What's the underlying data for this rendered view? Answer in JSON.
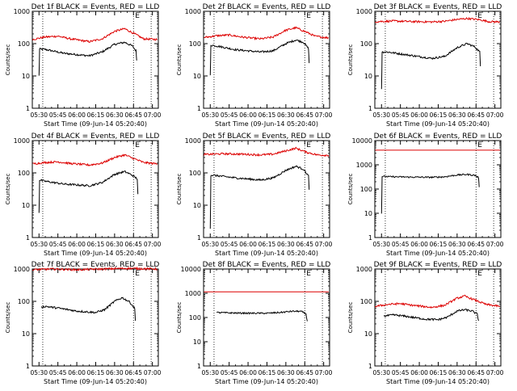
{
  "figure": {
    "background": "#ffffff",
    "axis_color": "#000000"
  },
  "chart_data": [
    {
      "type": "line",
      "title": "Det 1f BLACK = Events, RED = LLD",
      "xlabel": "Start Time (09-Jun-14 05:20:40)",
      "ylabel": "Counts/sec",
      "yscale": "log",
      "ylim": [
        1,
        1000
      ],
      "yticks": [
        1,
        10,
        100,
        1000
      ],
      "xticks": [
        "05:30",
        "05:45",
        "06:00",
        "06:15",
        "06:30",
        "06:45",
        "07:00"
      ],
      "xlim_min": [
        4.7,
        104.7
      ],
      "vlines_min": [
        13,
        85,
        99
      ],
      "corner_label": "E",
      "series": [
        {
          "name": "BLACK = Events",
          "color": "#000000",
          "points": [
            [
              10,
              10
            ],
            [
              10.5,
              68
            ],
            [
              15,
              66
            ],
            [
              30,
              50
            ],
            [
              50,
              42
            ],
            [
              60,
              55
            ],
            [
              70,
              95
            ],
            [
              78,
              110
            ],
            [
              84,
              85
            ],
            [
              87,
              60
            ],
            [
              87.5,
              30
            ]
          ]
        },
        {
          "name": "RED = LLD",
          "color": "#dd0000",
          "points": [
            [
              5,
              135
            ],
            [
              15,
              160
            ],
            [
              25,
              170
            ],
            [
              35,
              140
            ],
            [
              50,
              115
            ],
            [
              60,
              140
            ],
            [
              70,
              240
            ],
            [
              78,
              290
            ],
            [
              86,
              200
            ],
            [
              93,
              140
            ],
            [
              104,
              135
            ]
          ]
        }
      ]
    },
    {
      "type": "line",
      "title": "Det 2f BLACK = Events, RED = LLD",
      "xlabel": "Start Time (09-Jun-14 05:20:40)",
      "ylabel": "Counts/sec",
      "yscale": "log",
      "ylim": [
        1,
        1000
      ],
      "yticks": [
        1,
        10,
        100,
        1000
      ],
      "xticks": [
        "05:30",
        "05:45",
        "06:00",
        "06:15",
        "06:30",
        "06:45",
        "07:00"
      ],
      "xlim_min": [
        4.7,
        104.7
      ],
      "vlines_min": [
        13,
        85,
        99
      ],
      "corner_label": "E",
      "series": [
        {
          "name": "BLACK = Events",
          "color": "#000000",
          "points": [
            [
              10,
              10
            ],
            [
              10.5,
              90
            ],
            [
              15,
              85
            ],
            [
              30,
              65
            ],
            [
              50,
              55
            ],
            [
              60,
              60
            ],
            [
              70,
              100
            ],
            [
              78,
              130
            ],
            [
              84,
              110
            ],
            [
              88,
              70
            ],
            [
              88.5,
              25
            ]
          ]
        },
        {
          "name": "RED = LLD",
          "color": "#dd0000",
          "points": [
            [
              5,
              155
            ],
            [
              15,
              175
            ],
            [
              25,
              185
            ],
            [
              35,
              160
            ],
            [
              50,
              140
            ],
            [
              60,
              160
            ],
            [
              70,
              260
            ],
            [
              78,
              310
            ],
            [
              86,
              230
            ],
            [
              93,
              170
            ],
            [
              104,
              150
            ]
          ]
        }
      ]
    },
    {
      "type": "line",
      "title": "Det 3f BLACK = Events, RED = LLD",
      "xlabel": "Start Time (09-Jun-14 05:20:40)",
      "ylabel": "Counts/sec",
      "yscale": "log",
      "ylim": [
        1,
        1000
      ],
      "yticks": [
        1,
        10,
        100,
        1000
      ],
      "xticks": [
        "05:30",
        "05:45",
        "06:00",
        "06:15",
        "06:30",
        "06:45",
        "07:00"
      ],
      "xlim_min": [
        4.7,
        104.7
      ],
      "vlines_min": [
        13,
        85,
        99
      ],
      "corner_label": "E",
      "series": [
        {
          "name": "BLACK = Events",
          "color": "#000000",
          "points": [
            [
              10,
              4
            ],
            [
              10.5,
              55
            ],
            [
              15,
              55
            ],
            [
              30,
              45
            ],
            [
              50,
              35
            ],
            [
              60,
              40
            ],
            [
              70,
              75
            ],
            [
              78,
              100
            ],
            [
              84,
              80
            ],
            [
              88,
              55
            ],
            [
              88.5,
              20
            ]
          ]
        },
        {
          "name": "RED = LLD",
          "color": "#dd0000",
          "points": [
            [
              5,
              480
            ],
            [
              20,
              500
            ],
            [
              35,
              480
            ],
            [
              50,
              470
            ],
            [
              60,
              490
            ],
            [
              70,
              560
            ],
            [
              78,
              600
            ],
            [
              88,
              550
            ],
            [
              95,
              480
            ],
            [
              104,
              470
            ]
          ]
        }
      ]
    },
    {
      "type": "line",
      "title": "Det 4f BLACK = Events, RED = LLD",
      "xlabel": "Start Time (09-Jun-14 05:20:40)",
      "ylabel": "Counts/sec",
      "yscale": "log",
      "ylim": [
        1,
        1000
      ],
      "yticks": [
        1,
        10,
        100,
        1000
      ],
      "xticks": [
        "05:30",
        "05:45",
        "06:00",
        "06:15",
        "06:30",
        "06:45",
        "07:00"
      ],
      "xlim_min": [
        4.7,
        104.7
      ],
      "vlines_min": [
        13,
        85,
        99
      ],
      "corner_label": "E",
      "series": [
        {
          "name": "BLACK = Events",
          "color": "#000000",
          "points": [
            [
              10,
              6
            ],
            [
              10.5,
              60
            ],
            [
              15,
              55
            ],
            [
              30,
              45
            ],
            [
              50,
              40
            ],
            [
              60,
              50
            ],
            [
              70,
              90
            ],
            [
              78,
              110
            ],
            [
              84,
              85
            ],
            [
              88,
              65
            ],
            [
              88.5,
              22
            ]
          ]
        },
        {
          "name": "RED = LLD",
          "color": "#dd0000",
          "points": [
            [
              5,
              190
            ],
            [
              15,
              210
            ],
            [
              25,
              220
            ],
            [
              35,
              195
            ],
            [
              50,
              175
            ],
            [
              60,
              200
            ],
            [
              70,
              300
            ],
            [
              78,
              360
            ],
            [
              86,
              270
            ],
            [
              93,
              210
            ],
            [
              104,
              190
            ]
          ]
        }
      ]
    },
    {
      "type": "line",
      "title": "Det 5f BLACK = Events, RED = LLD",
      "xlabel": "Start Time (09-Jun-14 05:20:40)",
      "ylabel": "Counts/sec",
      "yscale": "log",
      "ylim": [
        1,
        1000
      ],
      "yticks": [
        1,
        10,
        100,
        1000
      ],
      "xticks": [
        "05:30",
        "05:45",
        "06:00",
        "06:15",
        "06:30",
        "06:45",
        "07:00"
      ],
      "xlim_min": [
        4.7,
        104.7
      ],
      "vlines_min": [
        13,
        85,
        99
      ],
      "corner_label": "E",
      "series": [
        {
          "name": "BLACK = Events",
          "color": "#000000",
          "points": [
            [
              10,
              2
            ],
            [
              10.5,
              85
            ],
            [
              15,
              82
            ],
            [
              30,
              70
            ],
            [
              50,
              60
            ],
            [
              60,
              70
            ],
            [
              70,
              120
            ],
            [
              78,
              160
            ],
            [
              84,
              130
            ],
            [
              88,
              80
            ],
            [
              88.5,
              30
            ]
          ]
        },
        {
          "name": "RED = LLD",
          "color": "#dd0000",
          "points": [
            [
              5,
              370
            ],
            [
              20,
              390
            ],
            [
              35,
              380
            ],
            [
              50,
              360
            ],
            [
              60,
              380
            ],
            [
              70,
              480
            ],
            [
              78,
              580
            ],
            [
              86,
              440
            ],
            [
              95,
              360
            ],
            [
              104,
              350
            ]
          ]
        }
      ]
    },
    {
      "type": "line",
      "title": "Det 6f BLACK = Events, RED = LLD",
      "xlabel": "Start Time (09-Jun-14 05:20:40)",
      "ylabel": "Counts/sec",
      "yscale": "log",
      "ylim": [
        1,
        10000
      ],
      "yticks": [
        1,
        10,
        100,
        1000,
        10000
      ],
      "xticks": [
        "05:30",
        "05:45",
        "06:00",
        "06:15",
        "06:30",
        "06:45",
        "07:00"
      ],
      "xlim_min": [
        4.7,
        104.7
      ],
      "vlines_min": [
        13,
        85,
        99
      ],
      "corner_label": "E",
      "series": [
        {
          "name": "BLACK = Events",
          "color": "#000000",
          "points": [
            [
              10,
              10
            ],
            [
              10.5,
              330
            ],
            [
              20,
              320
            ],
            [
              35,
              310
            ],
            [
              50,
              305
            ],
            [
              60,
              320
            ],
            [
              70,
              380
            ],
            [
              78,
              400
            ],
            [
              84,
              370
            ],
            [
              87,
              300
            ],
            [
              87.5,
              120
            ]
          ]
        },
        {
          "name": "RED = LLD",
          "color": "#dd0000",
          "points": [
            [
              5,
              4000
            ],
            [
              104,
              4000
            ]
          ]
        }
      ]
    },
    {
      "type": "line",
      "title": "Det 7f BLACK = Events, RED = LLD",
      "xlabel": "Start Time (09-Jun-14 05:20:40)",
      "ylabel": "Counts/sec",
      "yscale": "log",
      "ylim": [
        1,
        1000
      ],
      "yticks": [
        1,
        10,
        100,
        1000
      ],
      "xticks": [
        "05:30",
        "05:45",
        "06:00",
        "06:15",
        "06:30",
        "06:45",
        "07:00"
      ],
      "xlim_min": [
        4.7,
        104.7
      ],
      "vlines_min": [
        13,
        85,
        99
      ],
      "corner_label": "E",
      "series": [
        {
          "name": "BLACK = Events",
          "color": "#000000",
          "points": [
            [
              12,
              65
            ],
            [
              15,
              70
            ],
            [
              25,
              62
            ],
            [
              40,
              50
            ],
            [
              55,
              45
            ],
            [
              62,
              55
            ],
            [
              70,
              100
            ],
            [
              76,
              130
            ],
            [
              82,
              95
            ],
            [
              86,
              60
            ],
            [
              86.5,
              25
            ]
          ]
        },
        {
          "name": "RED = LLD",
          "color": "#dd0000",
          "points": [
            [
              5,
              950
            ],
            [
              20,
              1000
            ],
            [
              40,
              950
            ],
            [
              60,
              1000
            ],
            [
              80,
              1050
            ],
            [
              104,
              1000
            ]
          ]
        }
      ]
    },
    {
      "type": "line",
      "title": "Det 8f BLACK = Events, RED = LLD",
      "xlabel": "Start Time (09-Jun-14 05:20:40)",
      "ylabel": "Counts/sec",
      "yscale": "log",
      "ylim": [
        1,
        10000
      ],
      "yticks": [
        1,
        10,
        100,
        1000,
        10000
      ],
      "xticks": [
        "05:30",
        "05:45",
        "06:00",
        "06:15",
        "06:30",
        "06:45",
        "07:00"
      ],
      "xlim_min": [
        4.7,
        104.7
      ],
      "vlines_min": [
        13,
        85,
        99
      ],
      "corner_label": "E",
      "series": [
        {
          "name": "BLACK = Events",
          "color": "#000000",
          "points": [
            [
              15,
              160
            ],
            [
              25,
              155
            ],
            [
              40,
              150
            ],
            [
              55,
              150
            ],
            [
              65,
              160
            ],
            [
              75,
              180
            ],
            [
              82,
              180
            ],
            [
              86,
              140
            ],
            [
              87,
              70
            ]
          ]
        },
        {
          "name": "RED = LLD",
          "color": "#dd0000",
          "points": [
            [
              5,
              1150
            ],
            [
              104,
              1150
            ]
          ]
        }
      ]
    },
    {
      "type": "line",
      "title": "Det 9f BLACK = Events, RED = LLD",
      "xlabel": "Start Time (09-Jun-14 05:20:40)",
      "ylabel": "Counts/sec",
      "yscale": "log",
      "ylim": [
        1,
        1000
      ],
      "yticks": [
        1,
        10,
        100,
        1000
      ],
      "xticks": [
        "05:30",
        "05:45",
        "06:00",
        "06:15",
        "06:30",
        "06:45",
        "07:00"
      ],
      "xlim_min": [
        4.7,
        104.7
      ],
      "vlines_min": [
        13,
        85,
        99
      ],
      "corner_label": "E",
      "series": [
        {
          "name": "BLACK = Events",
          "color": "#000000",
          "points": [
            [
              12,
              35
            ],
            [
              20,
              38
            ],
            [
              30,
              34
            ],
            [
              45,
              28
            ],
            [
              55,
              27
            ],
            [
              62,
              32
            ],
            [
              70,
              50
            ],
            [
              76,
              55
            ],
            [
              82,
              50
            ],
            [
              86,
              40
            ],
            [
              87,
              25
            ]
          ]
        },
        {
          "name": "RED = LLD",
          "color": "#dd0000",
          "points": [
            [
              5,
              70
            ],
            [
              15,
              80
            ],
            [
              25,
              85
            ],
            [
              35,
              75
            ],
            [
              50,
              65
            ],
            [
              60,
              75
            ],
            [
              70,
              125
            ],
            [
              76,
              145
            ],
            [
              84,
              110
            ],
            [
              93,
              80
            ],
            [
              104,
              70
            ]
          ]
        }
      ]
    }
  ]
}
